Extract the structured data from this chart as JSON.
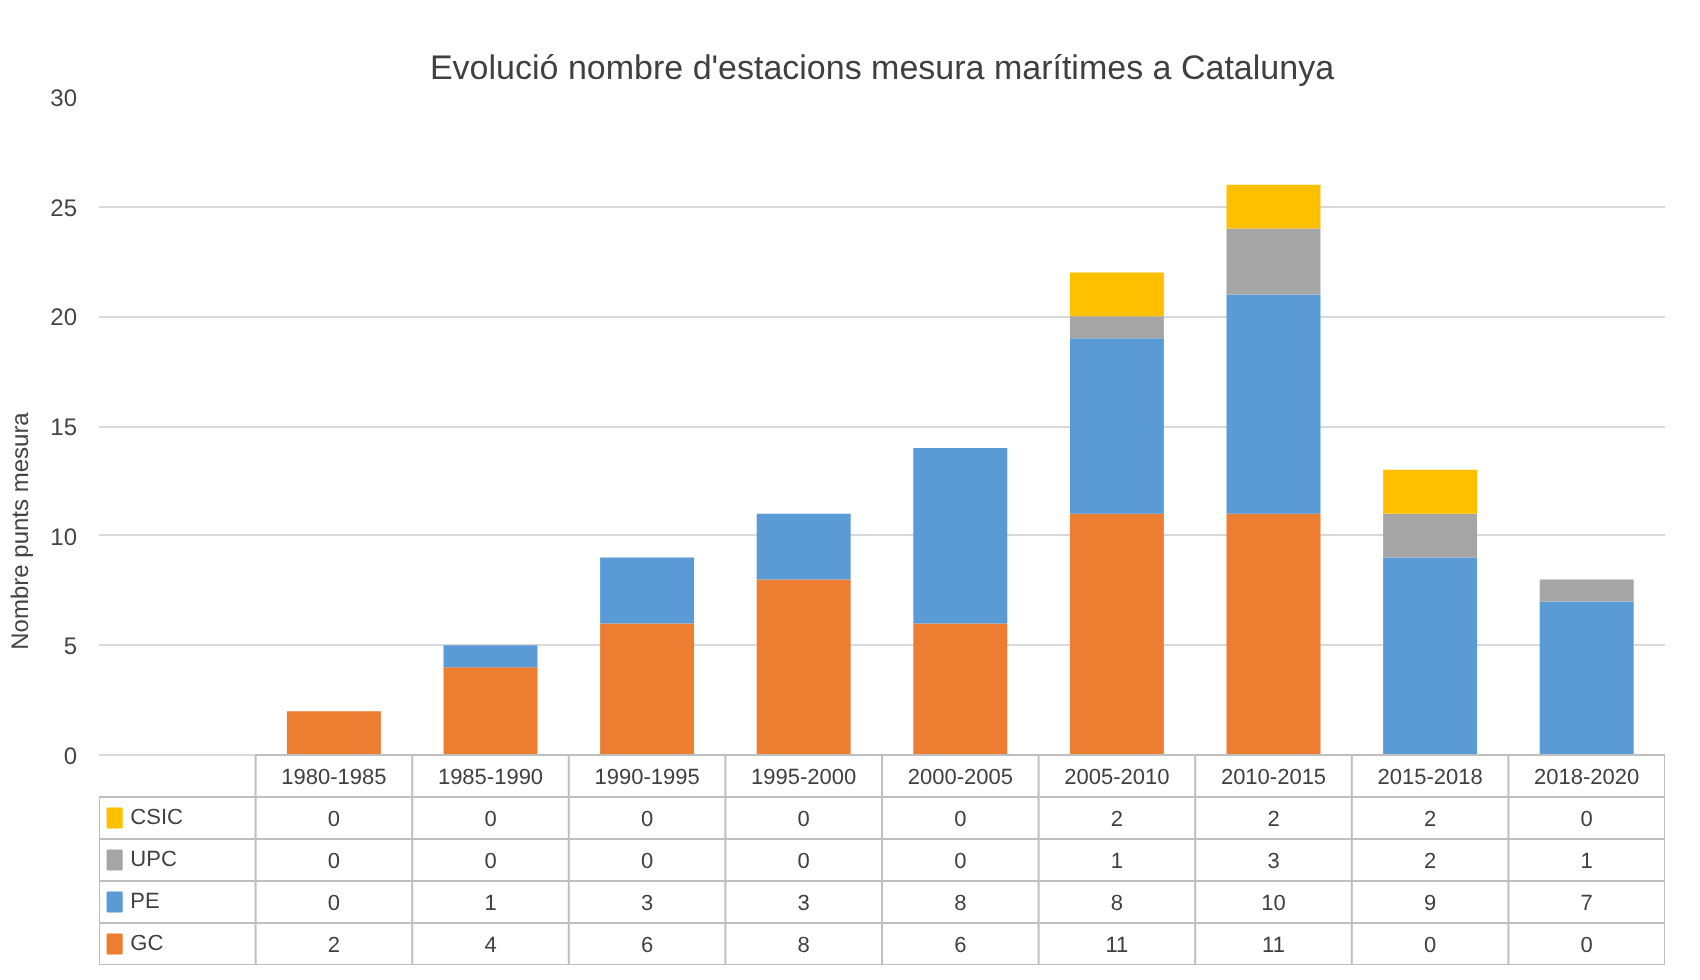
{
  "chart_data": {
    "type": "bar",
    "title": "Evolució nombre d'estacions mesura marítimes a Catalunya",
    "ylabel": "Nombre punts mesura",
    "categories": [
      "1980-1985",
      "1985-1990",
      "1990-1995",
      "1995-2000",
      "2000-2005",
      "2005-2010",
      "2010-2015",
      "2015-2018",
      "2018-2020"
    ],
    "series": [
      {
        "name": "GC",
        "color": "#ed7d31",
        "values": [
          2,
          4,
          6,
          8,
          6,
          11,
          11,
          0,
          0
        ]
      },
      {
        "name": "PE",
        "color": "#5b9bd5",
        "values": [
          0,
          1,
          3,
          3,
          8,
          8,
          10,
          9,
          7
        ]
      },
      {
        "name": "UPC",
        "color": "#a5a5a5",
        "values": [
          0,
          0,
          0,
          0,
          0,
          1,
          3,
          2,
          1
        ]
      },
      {
        "name": "CSIC",
        "color": "#ffc000",
        "values": [
          0,
          0,
          0,
          0,
          0,
          2,
          2,
          2,
          0
        ]
      }
    ],
    "stacked": true,
    "ylim": [
      0,
      30
    ],
    "yticks": [
      0,
      5,
      10,
      15,
      20,
      25,
      30
    ],
    "grid": "y",
    "legend": "bottom left",
    "data_labels": true
  }
}
